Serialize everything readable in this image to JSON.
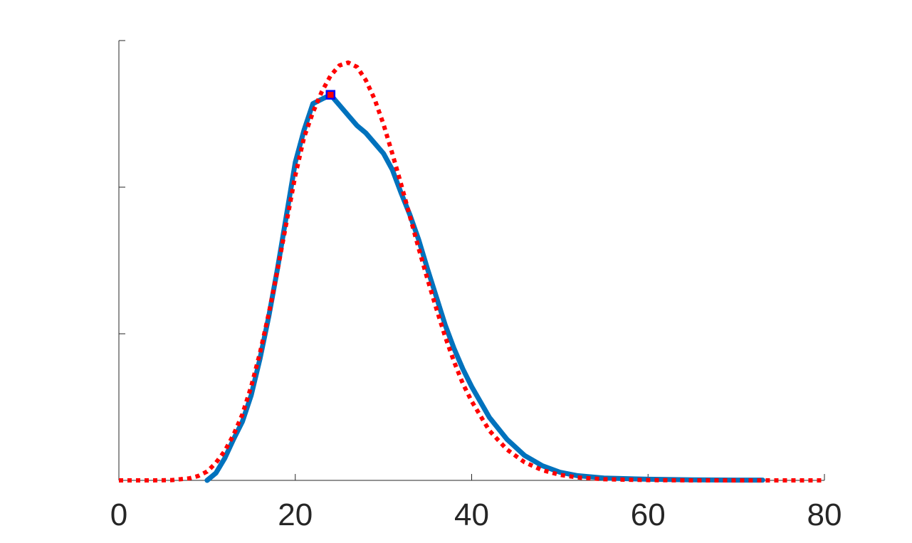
{
  "chart_data": {
    "type": "line",
    "title": "",
    "xlabel": "",
    "ylabel": "",
    "xlim": [
      0,
      80
    ],
    "ylim": [
      0,
      1.5
    ],
    "x_ticks": [
      0,
      20,
      40,
      60,
      80
    ],
    "x_tick_labels": [
      "0",
      "20",
      "40",
      "60",
      "80"
    ],
    "y_ticks": [
      0,
      0.5,
      1,
      1.5
    ],
    "y_tick_labels": [],
    "grid": false,
    "legend": "none",
    "series": [
      {
        "style": "solid",
        "color": "#0072BD",
        "x": [
          10,
          11,
          12,
          13,
          14,
          15,
          16,
          17,
          18,
          19,
          20,
          21,
          22,
          23,
          24,
          25,
          26,
          27,
          28,
          29,
          30,
          31,
          32,
          33,
          34,
          35,
          36,
          37,
          38,
          39,
          40,
          42,
          44,
          46,
          48,
          50,
          52,
          55,
          60,
          65,
          70,
          73
        ],
        "y": [
          0.0,
          0.025,
          0.075,
          0.14,
          0.2,
          0.29,
          0.415,
          0.56,
          0.725,
          0.905,
          1.085,
          1.195,
          1.285,
          1.3,
          1.315,
          1.28,
          1.245,
          1.21,
          1.185,
          1.15,
          1.115,
          1.06,
          0.98,
          0.905,
          0.82,
          0.72,
          0.625,
          0.53,
          0.45,
          0.38,
          0.32,
          0.215,
          0.14,
          0.085,
          0.05,
          0.028,
          0.016,
          0.008,
          0.004,
          0.002,
          0.001,
          0.001
        ]
      },
      {
        "style": "dotted",
        "color": "#FF0000",
        "x": [
          0,
          2,
          4,
          6,
          8,
          9,
          10,
          11,
          12,
          13,
          14,
          15,
          16,
          17,
          18,
          19,
          20,
          21,
          22,
          23,
          24,
          25,
          26,
          27,
          28,
          29,
          30,
          31,
          32,
          33,
          34,
          35,
          36,
          37,
          38,
          39,
          40,
          42,
          44,
          46,
          48,
          50,
          52,
          55,
          60,
          65,
          70,
          75,
          80
        ],
        "y": [
          0.0,
          0.0,
          0.0,
          0.001,
          0.007,
          0.015,
          0.03,
          0.06,
          0.1,
          0.155,
          0.225,
          0.32,
          0.435,
          0.57,
          0.72,
          0.88,
          1.04,
          1.17,
          1.255,
          1.325,
          1.38,
          1.415,
          1.425,
          1.41,
          1.365,
          1.3,
          1.215,
          1.115,
          1.01,
          0.9,
          0.79,
          0.685,
          0.585,
          0.49,
          0.405,
          0.33,
          0.27,
          0.17,
          0.105,
          0.062,
          0.035,
          0.019,
          0.01,
          0.004,
          0.001,
          0.0,
          0.0,
          0.0,
          0.0
        ]
      }
    ],
    "marker": {
      "shape": "square",
      "x": 24,
      "y": 1.315,
      "edge_color": "#0000FF",
      "face_color": "#FF0000"
    }
  }
}
